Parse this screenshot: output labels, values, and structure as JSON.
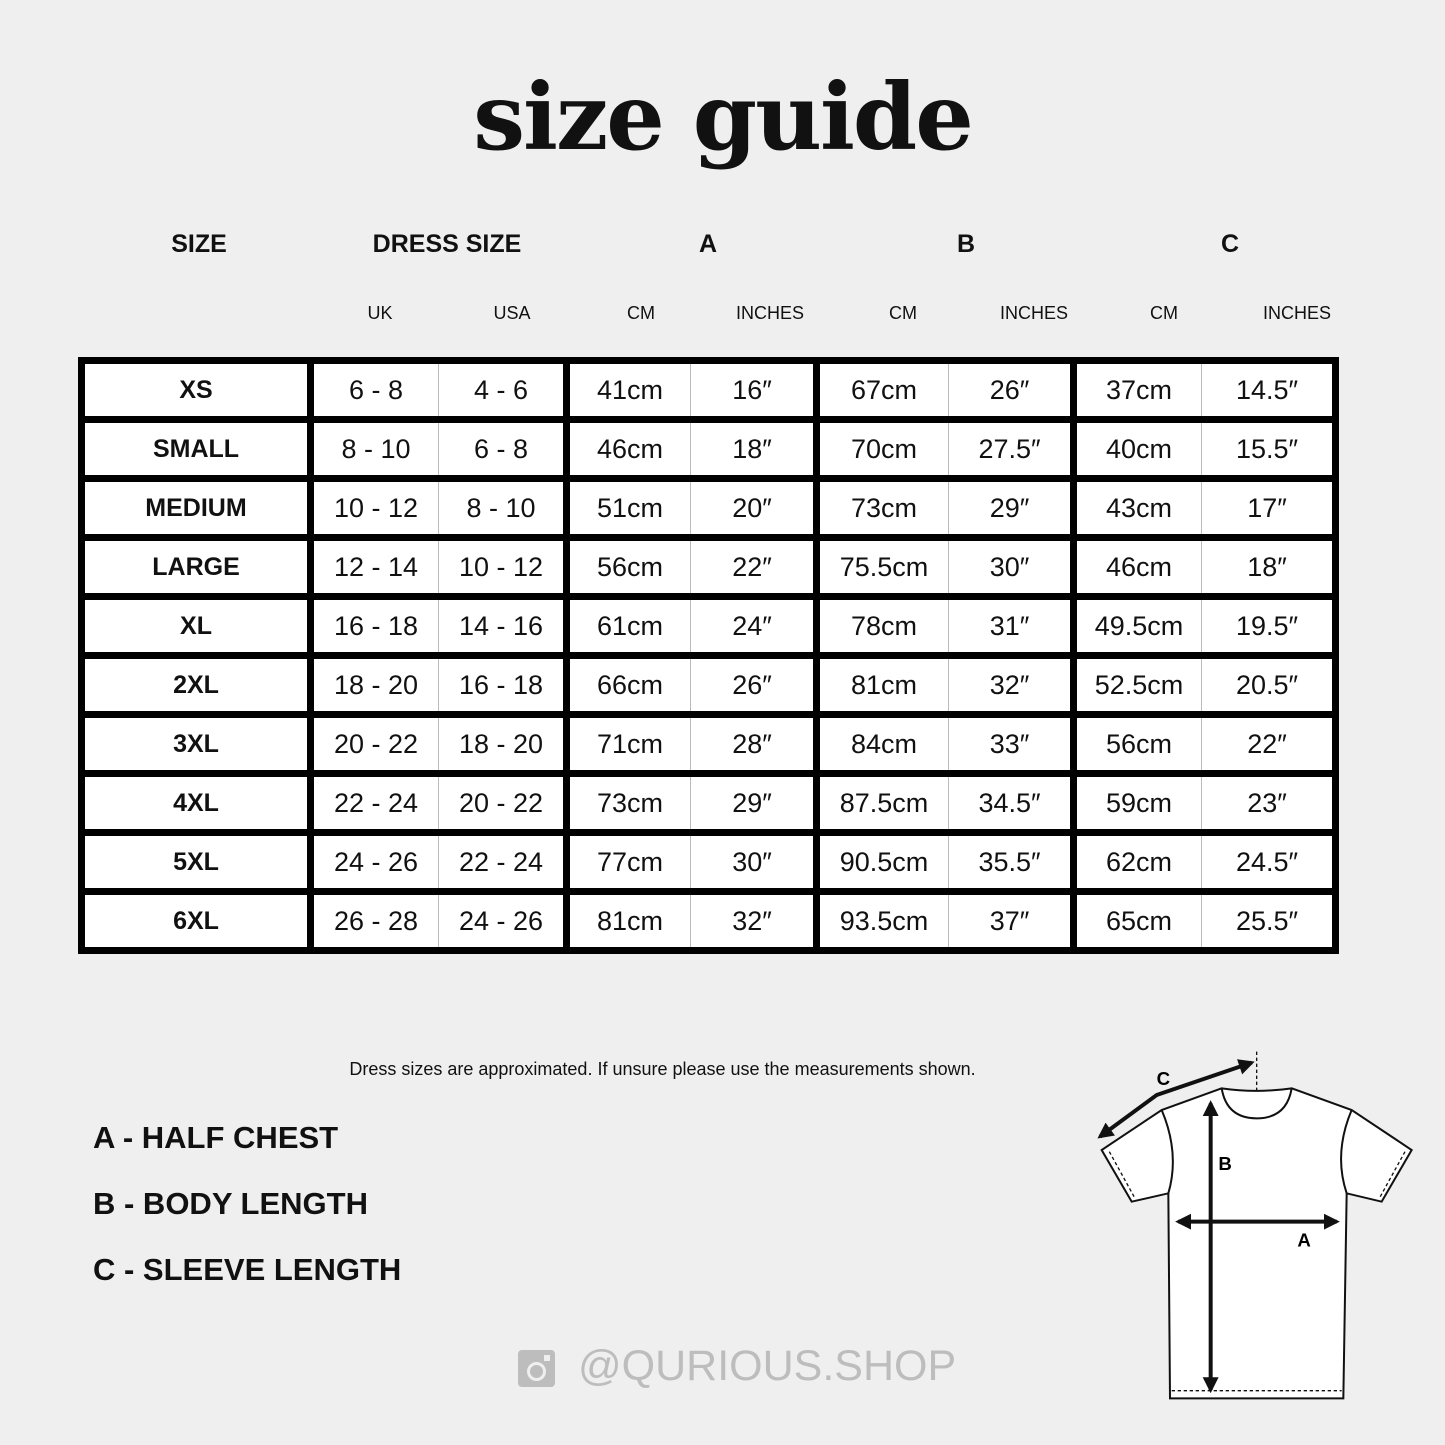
{
  "title": "size guide",
  "headers": {
    "size": "SIZE",
    "dress_size": "DRESS SIZE",
    "a": "A",
    "b": "B",
    "c": "C"
  },
  "subheaders": [
    "UK",
    "USA",
    "CM",
    "INCHES",
    "CM",
    "INCHES",
    "CM",
    "INCHES"
  ],
  "rows": [
    [
      "XS",
      "6 - 8",
      "4 - 6",
      "41cm",
      "16″",
      "67cm",
      "26″",
      "37cm",
      "14.5″"
    ],
    [
      "SMALL",
      "8 - 10",
      "6 - 8",
      "46cm",
      "18″",
      "70cm",
      "27.5″",
      "40cm",
      "15.5″"
    ],
    [
      "MEDIUM",
      "10 - 12",
      "8 - 10",
      "51cm",
      "20″",
      "73cm",
      "29″",
      "43cm",
      "17″"
    ],
    [
      "LARGE",
      "12 - 14",
      "10 - 12",
      "56cm",
      "22″",
      "75.5cm",
      "30″",
      "46cm",
      "18″"
    ],
    [
      "XL",
      "16 - 18",
      "14 - 16",
      "61cm",
      "24″",
      "78cm",
      "31″",
      "49.5cm",
      "19.5″"
    ],
    [
      "2XL",
      "18 - 20",
      "16 - 18",
      "66cm",
      "26″",
      "81cm",
      "32″",
      "52.5cm",
      "20.5″"
    ],
    [
      "3XL",
      "20 - 22",
      "18 - 20",
      "71cm",
      "28″",
      "84cm",
      "33″",
      "56cm",
      "22″"
    ],
    [
      "4XL",
      "22 - 24",
      "20 - 22",
      "73cm",
      "29″",
      "87.5cm",
      "34.5″",
      "59cm",
      "23″"
    ],
    [
      "5XL",
      "24 - 26",
      "22 - 24",
      "77cm",
      "30″",
      "90.5cm",
      "35.5″",
      "62cm",
      "24.5″"
    ],
    [
      "6XL",
      "26 - 28",
      "24 - 26",
      "81cm",
      "32″",
      "93.5cm",
      "37″",
      "65cm",
      "25.5″"
    ]
  ],
  "note": "Dress sizes are approximated. If unsure please use the measurements shown.",
  "legend": [
    "A - HALF CHEST",
    "B - BODY LENGTH",
    "C - SLEEVE LENGTH"
  ],
  "diagram": {
    "a": "A",
    "b": "B",
    "c": "C"
  },
  "social": {
    "icon": "instagram-icon",
    "handle": "@QURIOUS.SHOP"
  }
}
